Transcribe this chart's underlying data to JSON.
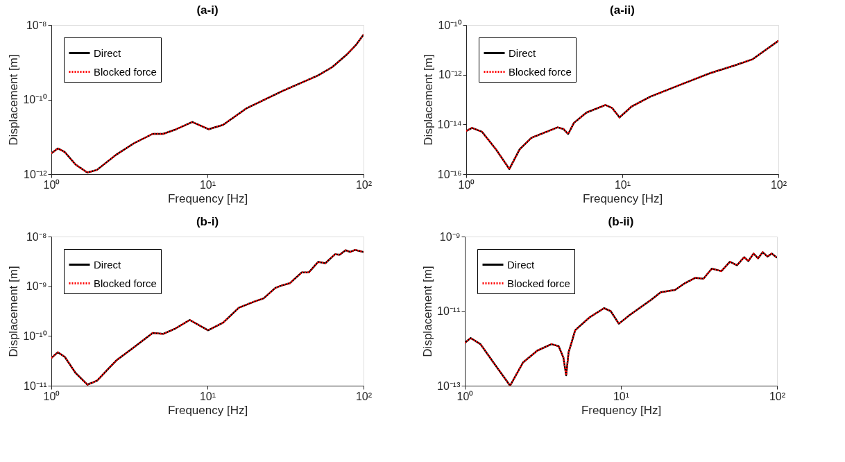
{
  "chart_data": [
    {
      "type": "line",
      "title": "(a-i)",
      "xlabel": "Frequency [Hz]",
      "ylabel": "Displacement [m]",
      "log": "xy",
      "legend": "top left",
      "grid": false,
      "xlim": [
        1,
        100
      ],
      "xticks": [
        {
          "value": 1,
          "label": "10⁰"
        },
        {
          "value": 10,
          "label": "10¹"
        },
        {
          "value": 100,
          "label": "10²"
        }
      ],
      "ylim": [
        1e-12,
        1e-08
      ],
      "yticks": [
        {
          "value": 1e-12,
          "label": "10⁻¹²"
        },
        {
          "value": 1e-10,
          "label": "10⁻¹⁰"
        },
        {
          "value": 1e-08,
          "label": "10⁻⁸"
        }
      ],
      "x": [
        1,
        1.1,
        1.22,
        1.43,
        1.7,
        1.96,
        2.6,
        3.4,
        4.46,
        5.2,
        6.2,
        8.0,
        10.2,
        12.6,
        17.9,
        30.3,
        51,
        63,
        78,
        90,
        100
      ],
      "series": [
        {
          "name": "Direct",
          "color": "#000000",
          "line_style": "solid",
          "values": [
            3.6e-12,
            4.9e-12,
            3.9e-12,
            1.8e-12,
            1.1e-12,
            1.3e-12,
            3.3e-12,
            6.8e-12,
            1.2e-11,
            1.2e-11,
            1.55e-11,
            2.5e-11,
            1.6e-11,
            2.1e-11,
            5.9e-11,
            1.7e-10,
            4.4e-10,
            7.4e-10,
            1.6e-09,
            3e-09,
            5.5e-09
          ]
        },
        {
          "name": "Blocked force",
          "color": "#ff0000",
          "line_style": "dotted",
          "values": [
            3.6e-12,
            4.9e-12,
            3.9e-12,
            1.8e-12,
            1.1e-12,
            1.3e-12,
            3.3e-12,
            6.8e-12,
            1.2e-11,
            1.2e-11,
            1.55e-11,
            2.5e-11,
            1.6e-11,
            2.1e-11,
            5.9e-11,
            1.7e-10,
            4.4e-10,
            7.4e-10,
            1.6e-09,
            3e-09,
            5.5e-09
          ]
        }
      ]
    },
    {
      "type": "line",
      "title": "(a-ii)",
      "xlabel": "Frequency [Hz]",
      "ylabel": "Displacement [m]",
      "log": "xy",
      "legend": "top left",
      "grid": false,
      "xlim": [
        1,
        100
      ],
      "xticks": [
        {
          "value": 1,
          "label": "10⁰"
        },
        {
          "value": 10,
          "label": "10¹"
        },
        {
          "value": 100,
          "label": "10²"
        }
      ],
      "ylim": [
        1e-16,
        1e-10
      ],
      "yticks": [
        {
          "value": 1e-16,
          "label": "10⁻¹⁶"
        },
        {
          "value": 1e-14,
          "label": "10⁻¹⁴"
        },
        {
          "value": 1e-12,
          "label": "10⁻¹²"
        },
        {
          "value": 1e-10,
          "label": "10⁻¹⁰"
        }
      ],
      "x": [
        1,
        1.09,
        1.26,
        1.55,
        1.89,
        2.2,
        2.62,
        3.85,
        4.2,
        4.5,
        4.9,
        5.9,
        7.8,
        8.6,
        9.6,
        11.4,
        15.1,
        23.9,
        36.5,
        51.8,
        68.5,
        84,
        100
      ],
      "series": [
        {
          "name": "Direct",
          "color": "#000000",
          "line_style": "solid",
          "values": [
            5.4e-15,
            7.2e-15,
            5.1e-15,
            1e-15,
            1.6e-16,
            1e-15,
            2.9e-15,
            7.6e-15,
            6.5e-15,
            4.1e-15,
            1.15e-14,
            3e-14,
            6e-14,
            4.6e-14,
            1.9e-14,
            5.1e-14,
            1.3e-13,
            4.1e-13,
            1.15e-12,
            2.3e-12,
            4.2e-12,
            1.05e-11,
            2.3e-11
          ]
        },
        {
          "name": "Blocked force",
          "color": "#ff0000",
          "line_style": "dotted",
          "values": [
            5.4e-15,
            7.2e-15,
            5.1e-15,
            1e-15,
            1.6e-16,
            1e-15,
            2.9e-15,
            7.6e-15,
            6.5e-15,
            4.1e-15,
            1.15e-14,
            3e-14,
            6e-14,
            4.6e-14,
            1.9e-14,
            5.1e-14,
            1.3e-13,
            4.1e-13,
            1.15e-12,
            2.3e-12,
            4.2e-12,
            1.05e-11,
            2.3e-11
          ]
        }
      ]
    },
    {
      "type": "line",
      "title": "(b-i)",
      "xlabel": "Frequency [Hz]",
      "ylabel": "Displacement [m]",
      "log": "xy",
      "legend": "top left",
      "grid": false,
      "xlim": [
        1,
        100
      ],
      "xticks": [
        {
          "value": 1,
          "label": "10⁰"
        },
        {
          "value": 10,
          "label": "10¹"
        },
        {
          "value": 100,
          "label": "10²"
        }
      ],
      "ylim": [
        1e-11,
        1e-08
      ],
      "yticks": [
        {
          "value": 1e-11,
          "label": "10⁻¹¹"
        },
        {
          "value": 1e-10,
          "label": "10⁻¹⁰"
        },
        {
          "value": 1e-09,
          "label": "10⁻⁹"
        },
        {
          "value": 1e-08,
          "label": "10⁻⁸"
        }
      ],
      "x": [
        1,
        1.1,
        1.22,
        1.43,
        1.7,
        1.96,
        2.6,
        3.4,
        4.46,
        5.2,
        6.2,
        7.7,
        10.1,
        12.6,
        15.9,
        19.9,
        22.9,
        27.3,
        30.3,
        33.7,
        40.2,
        44.6,
        51.3,
        56.9,
        65.6,
        70.3,
        76.8,
        82.3,
        88.3,
        100
      ],
      "series": [
        {
          "name": "Direct",
          "color": "#000000",
          "line_style": "solid",
          "values": [
            3.6e-11,
            4.7e-11,
            3.8e-11,
            1.8e-11,
            1.05e-11,
            1.26e-11,
            3.2e-11,
            6e-11,
            1.15e-10,
            1.1e-10,
            1.4e-10,
            2.1e-10,
            1.3e-10,
            1.85e-10,
            3.7e-10,
            4.9e-10,
            5.7e-10,
            9.3e-10,
            1.05e-09,
            1.15e-09,
            1.9e-09,
            1.9e-09,
            3.1e-09,
            2.9e-09,
            4.4e-09,
            4.3e-09,
            5.3e-09,
            4.9e-09,
            5.4e-09,
            4.9e-09
          ]
        },
        {
          "name": "Blocked force",
          "color": "#ff0000",
          "line_style": "dotted",
          "values": [
            3.6e-11,
            4.7e-11,
            3.8e-11,
            1.8e-11,
            1.05e-11,
            1.26e-11,
            3.2e-11,
            6e-11,
            1.15e-10,
            1.1e-10,
            1.4e-10,
            2.1e-10,
            1.3e-10,
            1.85e-10,
            3.7e-10,
            4.9e-10,
            5.7e-10,
            9.3e-10,
            1.05e-09,
            1.15e-09,
            1.9e-09,
            1.9e-09,
            3.1e-09,
            2.9e-09,
            4.4e-09,
            4.3e-09,
            5.3e-09,
            4.9e-09,
            5.4e-09,
            4.9e-09
          ]
        }
      ]
    },
    {
      "type": "line",
      "title": "(b-ii)",
      "xlabel": "Frequency [Hz]",
      "ylabel": "Displacement [m]",
      "log": "xy",
      "legend": "top left",
      "grid": false,
      "xlim": [
        1,
        100
      ],
      "xticks": [
        {
          "value": 1,
          "label": "10⁰"
        },
        {
          "value": 10,
          "label": "10¹"
        },
        {
          "value": 100,
          "label": "10²"
        }
      ],
      "ylim": [
        1e-13,
        1e-09
      ],
      "yticks": [
        {
          "value": 1e-13,
          "label": "10⁻¹³"
        },
        {
          "value": 1e-11,
          "label": "10⁻¹¹"
        },
        {
          "value": 1e-09,
          "label": "10⁻⁹"
        }
      ],
      "x": [
        1,
        1.09,
        1.26,
        1.55,
        1.95,
        2.36,
        2.91,
        3.59,
        3.99,
        4.28,
        4.46,
        4.62,
        5.1,
        6.3,
        7.8,
        8.6,
        9.7,
        11.4,
        15.6,
        18.0,
        22.2,
        25.5,
        29.9,
        33.8,
        38.2,
        44.0,
        49.9,
        55.4,
        61.6,
        65.5,
        70.8,
        75.6,
        81.0,
        86.8,
        92.6,
        100
      ],
      "series": [
        {
          "name": "Direct",
          "color": "#000000",
          "line_style": "solid",
          "values": [
            1.4e-12,
            1.9e-12,
            1.3e-12,
            3.8e-13,
            1e-13,
            4.2e-13,
            8.7e-13,
            1.3e-12,
            1.15e-12,
            5.7e-13,
            1.9e-13,
            7.8e-13,
            3.1e-12,
            6.8e-12,
            1.2e-11,
            1e-11,
            4.6e-12,
            7.9e-12,
            2e-11,
            3.2e-11,
            3.7e-11,
            5.5e-11,
            7.8e-11,
            7.4e-11,
            1.38e-10,
            1.18e-10,
            2.1e-10,
            1.7e-10,
            2.8e-10,
            2.2e-10,
            3.5e-10,
            2.6e-10,
            3.8e-10,
            2.9e-10,
            3.5e-10,
            2.7e-10
          ]
        },
        {
          "name": "Blocked force",
          "color": "#ff0000",
          "line_style": "dotted",
          "values": [
            1.4e-12,
            1.9e-12,
            1.3e-12,
            3.8e-13,
            1e-13,
            4.2e-13,
            8.7e-13,
            1.3e-12,
            1.15e-12,
            5.7e-13,
            1.9e-13,
            7.8e-13,
            3.1e-12,
            6.8e-12,
            1.2e-11,
            1e-11,
            4.6e-12,
            7.9e-12,
            2e-11,
            3.2e-11,
            3.7e-11,
            5.5e-11,
            7.8e-11,
            7.4e-11,
            1.38e-10,
            1.18e-10,
            2.1e-10,
            1.7e-10,
            2.8e-10,
            2.2e-10,
            3.5e-10,
            2.6e-10,
            3.8e-10,
            2.9e-10,
            3.5e-10,
            2.7e-10
          ]
        }
      ]
    }
  ]
}
